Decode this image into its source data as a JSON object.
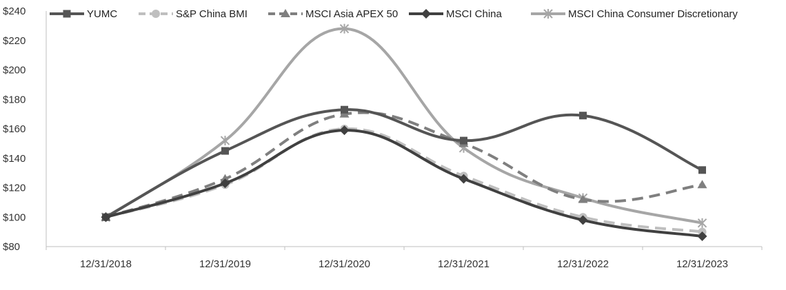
{
  "chart_data": {
    "type": "line",
    "title": "",
    "xlabel": "",
    "ylabel": "",
    "categories": [
      "12/31/2018",
      "12/31/2019",
      "12/31/2020",
      "12/31/2021",
      "12/31/2022",
      "12/31/2023"
    ],
    "y_ticks": [
      "$80",
      "$100",
      "$120",
      "$140",
      "$160",
      "$180",
      "$200",
      "$220",
      "$240"
    ],
    "ylim": [
      80,
      240
    ],
    "grid": false,
    "legend_position": "top",
    "series": [
      {
        "name": "YUMC",
        "values": [
          100,
          145,
          173,
          152,
          169,
          132
        ],
        "color": "#555555",
        "dash": "solid",
        "marker": "square"
      },
      {
        "name": "S&P China BMI",
        "values": [
          100,
          122,
          160,
          128,
          100,
          90
        ],
        "color": "#bfbfbf",
        "dash": "dashed",
        "marker": "circle"
      },
      {
        "name": "MSCI Asia APEX 50",
        "values": [
          100,
          126,
          170,
          150,
          112,
          122
        ],
        "color": "#7f7f7f",
        "dash": "dashed",
        "marker": "triangle"
      },
      {
        "name": "MSCI China",
        "values": [
          100,
          123,
          159,
          126,
          98,
          87
        ],
        "color": "#404040",
        "dash": "solid",
        "marker": "diamond"
      },
      {
        "name": "MSCI China Consumer Discretionary",
        "values": [
          100,
          152,
          228,
          147,
          113,
          96
        ],
        "color": "#a6a6a6",
        "dash": "solid",
        "marker": "star"
      }
    ]
  }
}
